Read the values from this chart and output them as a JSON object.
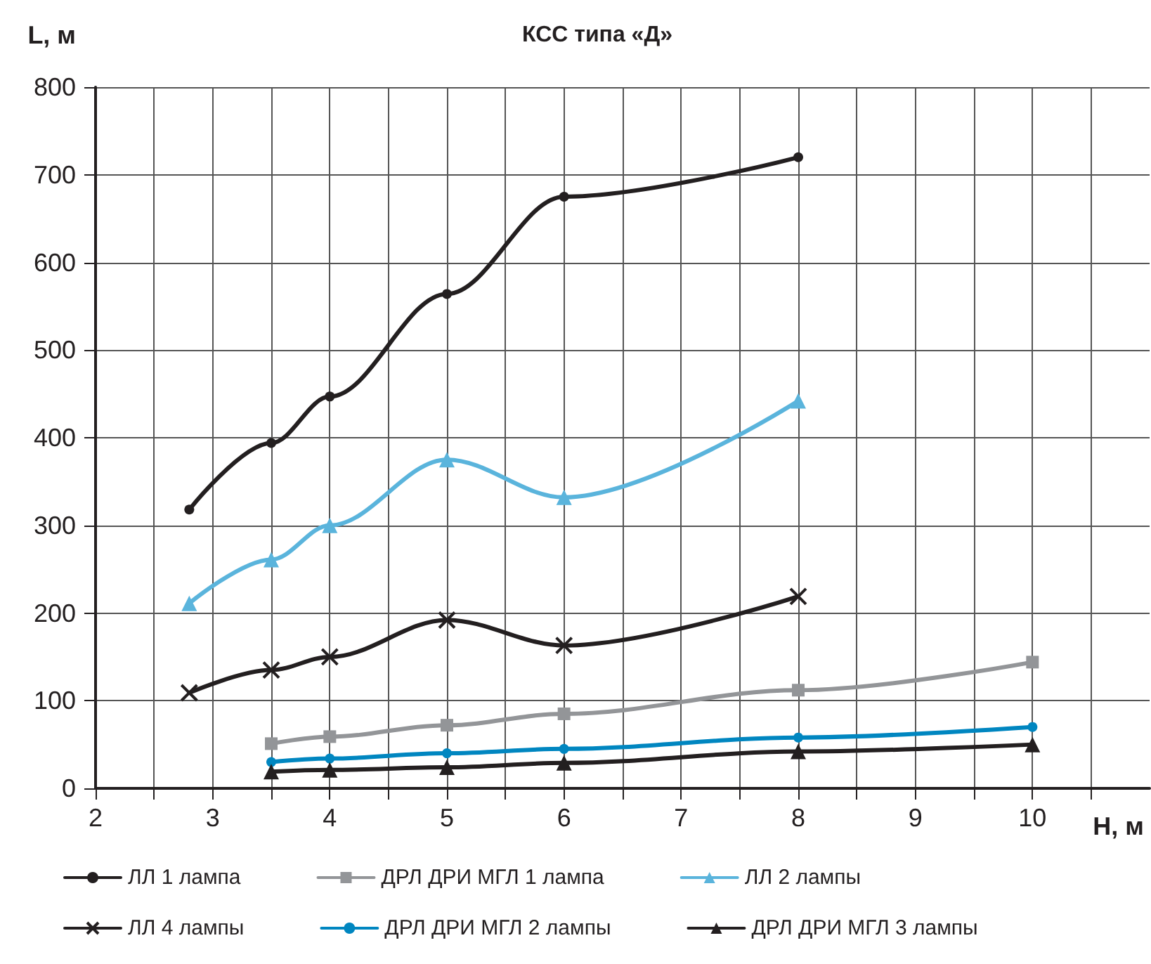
{
  "chart_data": {
    "type": "line",
    "title": "КСС типа «Д»",
    "xlabel": "H, м",
    "ylabel": "L, м",
    "xlim": [
      2,
      11
    ],
    "ylim": [
      0,
      800
    ],
    "xticks": [
      2,
      {
        "value": 2.5,
        "label": null
      },
      3,
      {
        "value": 3.5,
        "label": null
      },
      4,
      {
        "value": 4.5,
        "label": null
      },
      5,
      {
        "value": 5.5,
        "label": null
      },
      6,
      {
        "value": 6.5,
        "label": null
      },
      7,
      {
        "value": 7.5,
        "label": null
      },
      8,
      {
        "value": 8.5,
        "label": null
      },
      9,
      {
        "value": 9.5,
        "label": null
      },
      10,
      {
        "value": 10.5,
        "label": null
      }
    ],
    "yticks": [
      0,
      100,
      200,
      300,
      400,
      500,
      600,
      700,
      800
    ],
    "grid": true,
    "legend": "bottom",
    "line_style": "solid",
    "series": [
      {
        "name": "ЛЛ 1 лампа",
        "color": "#231f20",
        "marker": "circle",
        "x": [
          2.8,
          3.5,
          4,
          5,
          6,
          8
        ],
        "values": [
          318,
          394,
          447,
          564,
          675,
          720
        ]
      },
      {
        "name": "ДРЛ ДРИ МГЛ 1 лампа",
        "color": "#939598",
        "marker": "square",
        "x": [
          3.5,
          4,
          5,
          6,
          8,
          10
        ],
        "values": [
          51,
          59,
          72,
          85,
          112,
          144
        ]
      },
      {
        "name": "ЛЛ 2 лампы",
        "color": "#5ab4dc",
        "marker": "triangle",
        "x": [
          2.8,
          3.5,
          4,
          5,
          6,
          8
        ],
        "values": [
          211,
          261,
          300,
          375,
          332,
          442
        ]
      },
      {
        "name": "ЛЛ 4 лампы",
        "color": "#231f20",
        "marker": "cross",
        "x": [
          2.8,
          3.5,
          4,
          5,
          6,
          8
        ],
        "values": [
          109,
          135,
          150,
          192,
          163,
          219
        ]
      },
      {
        "name": "ДРЛ ДРИ МГЛ 2 лампы",
        "color": "#0086c0",
        "marker": "circle",
        "x": [
          3.5,
          4,
          5,
          6,
          8,
          10
        ],
        "values": [
          30,
          34,
          40,
          45,
          58,
          70
        ]
      },
      {
        "name": "ДРЛ ДРИ МГЛ 3 лампы",
        "color": "#231f20",
        "marker": "triangle",
        "x": [
          3.5,
          4,
          5,
          6,
          8,
          10
        ],
        "values": [
          19,
          21,
          24,
          29,
          42,
          50
        ]
      }
    ]
  }
}
